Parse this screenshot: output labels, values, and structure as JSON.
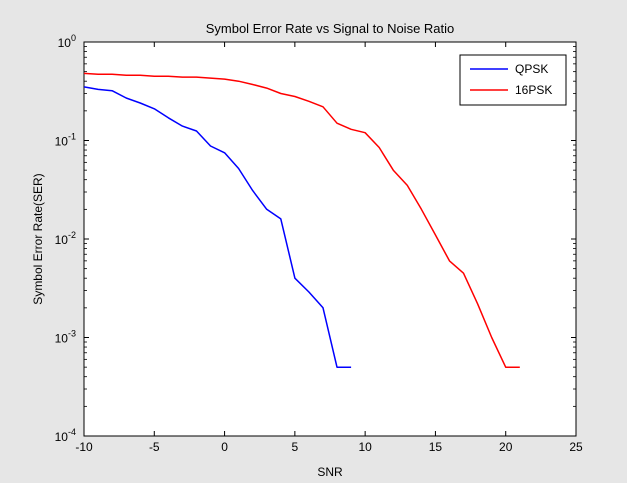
{
  "chart_data": {
    "type": "line",
    "title": "Symbol Error Rate vs Signal to Noise Ratio",
    "xlabel": "SNR",
    "ylabel": "Symbol Error Rate(SER)",
    "xlim": [
      -10,
      25
    ],
    "ylim": [
      0.0001,
      1
    ],
    "yscale": "log",
    "x_ticks": [
      "-10",
      "-5",
      "0",
      "5",
      "10",
      "15",
      "20",
      "25"
    ],
    "y_ticks": [
      {
        "base": "10",
        "exp": "0"
      },
      {
        "base": "10",
        "exp": "-1"
      },
      {
        "base": "10",
        "exp": "-2"
      },
      {
        "base": "10",
        "exp": "-3"
      },
      {
        "base": "10",
        "exp": "-4"
      }
    ],
    "grid": false,
    "legend": "top-right",
    "series": [
      {
        "name": "QPSK",
        "color": "#0000ff",
        "x": [
          -10,
          -9,
          -8,
          -7,
          -6,
          -5,
          -4,
          -3,
          -2,
          -1,
          0,
          1,
          2,
          3,
          4,
          5,
          6,
          7,
          8,
          9
        ],
        "y": [
          0.35,
          0.33,
          0.32,
          0.27,
          0.24,
          0.21,
          0.17,
          0.14,
          0.125,
          0.088,
          0.075,
          0.052,
          0.031,
          0.02,
          0.016,
          0.004,
          0.0029,
          0.002,
          0.0005,
          0.0005
        ]
      },
      {
        "name": "16PSK",
        "color": "#ff0000",
        "x": [
          -10,
          -9,
          -8,
          -7,
          -6,
          -5,
          -4,
          -3,
          -2,
          -1,
          0,
          1,
          2,
          3,
          4,
          5,
          6,
          7,
          8,
          9,
          10,
          11,
          12,
          13,
          14,
          15,
          16,
          17,
          18,
          19,
          20,
          21
        ],
        "y": [
          0.48,
          0.47,
          0.47,
          0.46,
          0.46,
          0.45,
          0.45,
          0.44,
          0.44,
          0.43,
          0.42,
          0.4,
          0.37,
          0.34,
          0.3,
          0.28,
          0.25,
          0.22,
          0.15,
          0.13,
          0.12,
          0.085,
          0.05,
          0.035,
          0.02,
          0.011,
          0.006,
          0.0045,
          0.0022,
          0.001,
          0.0005,
          0.0005
        ]
      }
    ]
  }
}
